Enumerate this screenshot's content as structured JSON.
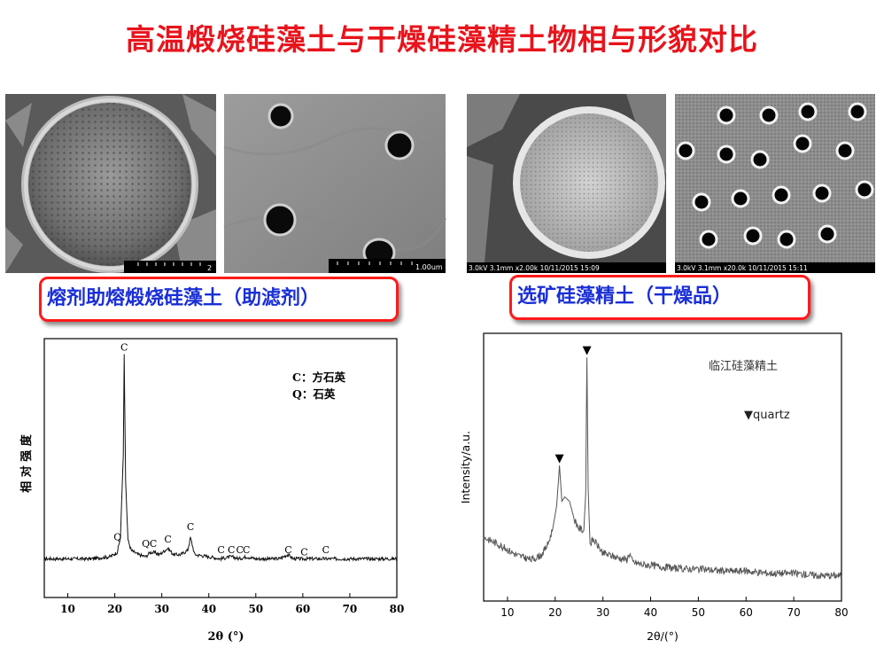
{
  "slide": {
    "title": "高温煅烧硅藻土与干燥硅藻精土物相与形貌对比"
  },
  "sem_images": [
    {
      "id": "calcined-diatom-overview",
      "scale_text": "2"
    },
    {
      "id": "calcined-diatom-pores",
      "scale_text": "1.00um"
    },
    {
      "id": "dried-diatom-overview",
      "caption": "3.0kV 3.1mm x2.00k 10/11/2015 15:09"
    },
    {
      "id": "dried-diatom-pores",
      "caption": "3.0kV 3.1mm x20.0k 10/11/2015 15:11"
    }
  ],
  "labels": {
    "left": "熔剂助熔煅烧硅藻土（助滤剂）",
    "right": "选矿硅藻精土（干燥品）"
  },
  "chart_data": [
    {
      "type": "line",
      "xlabel": "2θ (°)",
      "ylabel": "相 对 强 度",
      "xlim": [
        5,
        80
      ],
      "xticks": [
        10,
        20,
        30,
        40,
        50,
        60,
        70,
        80
      ],
      "legend": [
        "C：方石英",
        "Q：石英"
      ],
      "x": [
        5,
        10,
        15,
        19,
        20.5,
        21.2,
        21.8,
        22.0,
        22.3,
        22.8,
        23.5,
        25,
        26.6,
        27.5,
        28.4,
        29.5,
        31.3,
        32.5,
        34,
        35.5,
        36.1,
        37,
        40,
        42.5,
        44.8,
        46.5,
        48,
        50,
        55,
        56.8,
        58,
        60.2,
        62,
        64.8,
        66,
        70,
        75,
        80
      ],
      "values": [
        3,
        3,
        3,
        4,
        6,
        13,
        52,
        100,
        40,
        12,
        7,
        5,
        4,
        6,
        6,
        5,
        8,
        5,
        5,
        7,
        13,
        5,
        4,
        3,
        4,
        3,
        4,
        3,
        3,
        5,
        3,
        3,
        3,
        3,
        3,
        3,
        3,
        3
      ],
      "annotations": [
        {
          "text": "C",
          "x": 22.0,
          "y": 100
        },
        {
          "text": "Q",
          "x": 20.6,
          "y": 10
        },
        {
          "text": "Q",
          "x": 26.6,
          "y": 7
        },
        {
          "text": "C",
          "x": 28.2,
          "y": 7
        },
        {
          "text": "C",
          "x": 31.3,
          "y": 9
        },
        {
          "text": "C",
          "x": 36.1,
          "y": 15
        },
        {
          "text": "C",
          "x": 42.6,
          "y": 4
        },
        {
          "text": "C",
          "x": 44.8,
          "y": 4
        },
        {
          "text": "C",
          "x": 46.6,
          "y": 4
        },
        {
          "text": "C",
          "x": 48.0,
          "y": 4
        },
        {
          "text": "C",
          "x": 56.9,
          "y": 4
        },
        {
          "text": "C",
          "x": 60.3,
          "y": 3
        },
        {
          "text": "C",
          "x": 64.9,
          "y": 4
        }
      ]
    },
    {
      "type": "line",
      "title": "临江硅藻精土",
      "xlabel": "2θ/(°)",
      "ylabel": "Intensity/a.u.",
      "xlim": [
        5,
        80
      ],
      "xticks": [
        10,
        20,
        30,
        40,
        50,
        60,
        70,
        80
      ],
      "legend": [
        "▼quartz"
      ],
      "x": [
        5,
        8,
        12,
        15,
        17,
        18.5,
        19.5,
        20.3,
        20.9,
        21.4,
        22,
        23,
        24,
        25,
        26,
        26.4,
        26.65,
        26.9,
        27.3,
        28,
        30,
        33,
        35,
        35.6,
        36.2,
        38,
        42,
        46,
        50,
        55,
        60,
        65,
        70,
        75,
        80
      ],
      "values": [
        20,
        17,
        12,
        10,
        12,
        17,
        24,
        34,
        52,
        36,
        38,
        36,
        28,
        24,
        23,
        40,
        100,
        42,
        17,
        19,
        13,
        11,
        10,
        13,
        9,
        8,
        7,
        6,
        6,
        5,
        5,
        4,
        4,
        3,
        3
      ],
      "annotations": [
        {
          "text": "▼",
          "x": 20.9,
          "y": 52
        },
        {
          "text": "▼",
          "x": 26.65,
          "y": 100
        }
      ]
    }
  ]
}
